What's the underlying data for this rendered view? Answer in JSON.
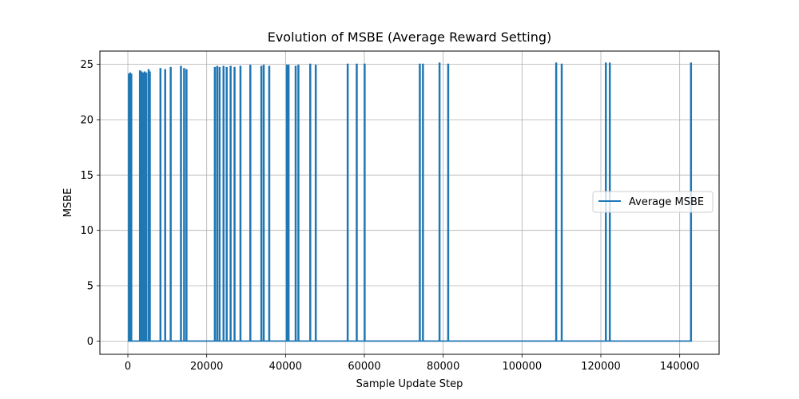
{
  "chart_data": {
    "type": "line",
    "title": "Evolution of MSBE (Average Reward Setting)",
    "xlabel": "Sample Update Step",
    "ylabel": "MSBE",
    "xlim": [
      -7100,
      150000
    ],
    "ylim": [
      -1.2,
      26.2
    ],
    "xticks": [
      0,
      20000,
      40000,
      60000,
      80000,
      100000,
      120000,
      140000
    ],
    "yticks": [
      0,
      5,
      10,
      15,
      20,
      25
    ],
    "grid": true,
    "legend": {
      "position": "center-right",
      "entries": [
        "Average MSBE"
      ]
    },
    "series": [
      {
        "name": "Average MSBE",
        "color": "#1f77b4",
        "spikes": [
          [
            200,
            24.1
          ],
          [
            500,
            24.2
          ],
          [
            800,
            24.1
          ],
          [
            3000,
            24.4
          ],
          [
            3400,
            24.3
          ],
          [
            3800,
            24.2
          ],
          [
            4200,
            24.3
          ],
          [
            4600,
            24.2
          ],
          [
            5200,
            24.5
          ],
          [
            5500,
            24.3
          ],
          [
            8200,
            24.6
          ],
          [
            9400,
            24.5
          ],
          [
            10800,
            24.7
          ],
          [
            13400,
            24.8
          ],
          [
            14200,
            24.6
          ],
          [
            14800,
            24.5
          ],
          [
            22000,
            24.7
          ],
          [
            22600,
            24.8
          ],
          [
            23200,
            24.7
          ],
          [
            24200,
            24.8
          ],
          [
            25000,
            24.7
          ],
          [
            26000,
            24.8
          ],
          [
            27000,
            24.7
          ],
          [
            28500,
            24.8
          ],
          [
            31000,
            24.9
          ],
          [
            33800,
            24.8
          ],
          [
            34400,
            24.9
          ],
          [
            35800,
            24.8
          ],
          [
            40300,
            24.9
          ],
          [
            40700,
            24.9
          ],
          [
            42500,
            24.8
          ],
          [
            43200,
            24.9
          ],
          [
            46200,
            25.0
          ],
          [
            47600,
            24.9
          ],
          [
            55700,
            25.0
          ],
          [
            58000,
            25.0
          ],
          [
            60000,
            25.0
          ],
          [
            74000,
            25.0
          ],
          [
            74800,
            25.0
          ],
          [
            79000,
            25.1
          ],
          [
            81200,
            25.0
          ],
          [
            108600,
            25.1
          ],
          [
            110000,
            25.0
          ],
          [
            121200,
            25.1
          ],
          [
            122200,
            25.1
          ],
          [
            142800,
            25.1
          ]
        ],
        "baseline": 0,
        "x_end": 142900
      }
    ]
  }
}
